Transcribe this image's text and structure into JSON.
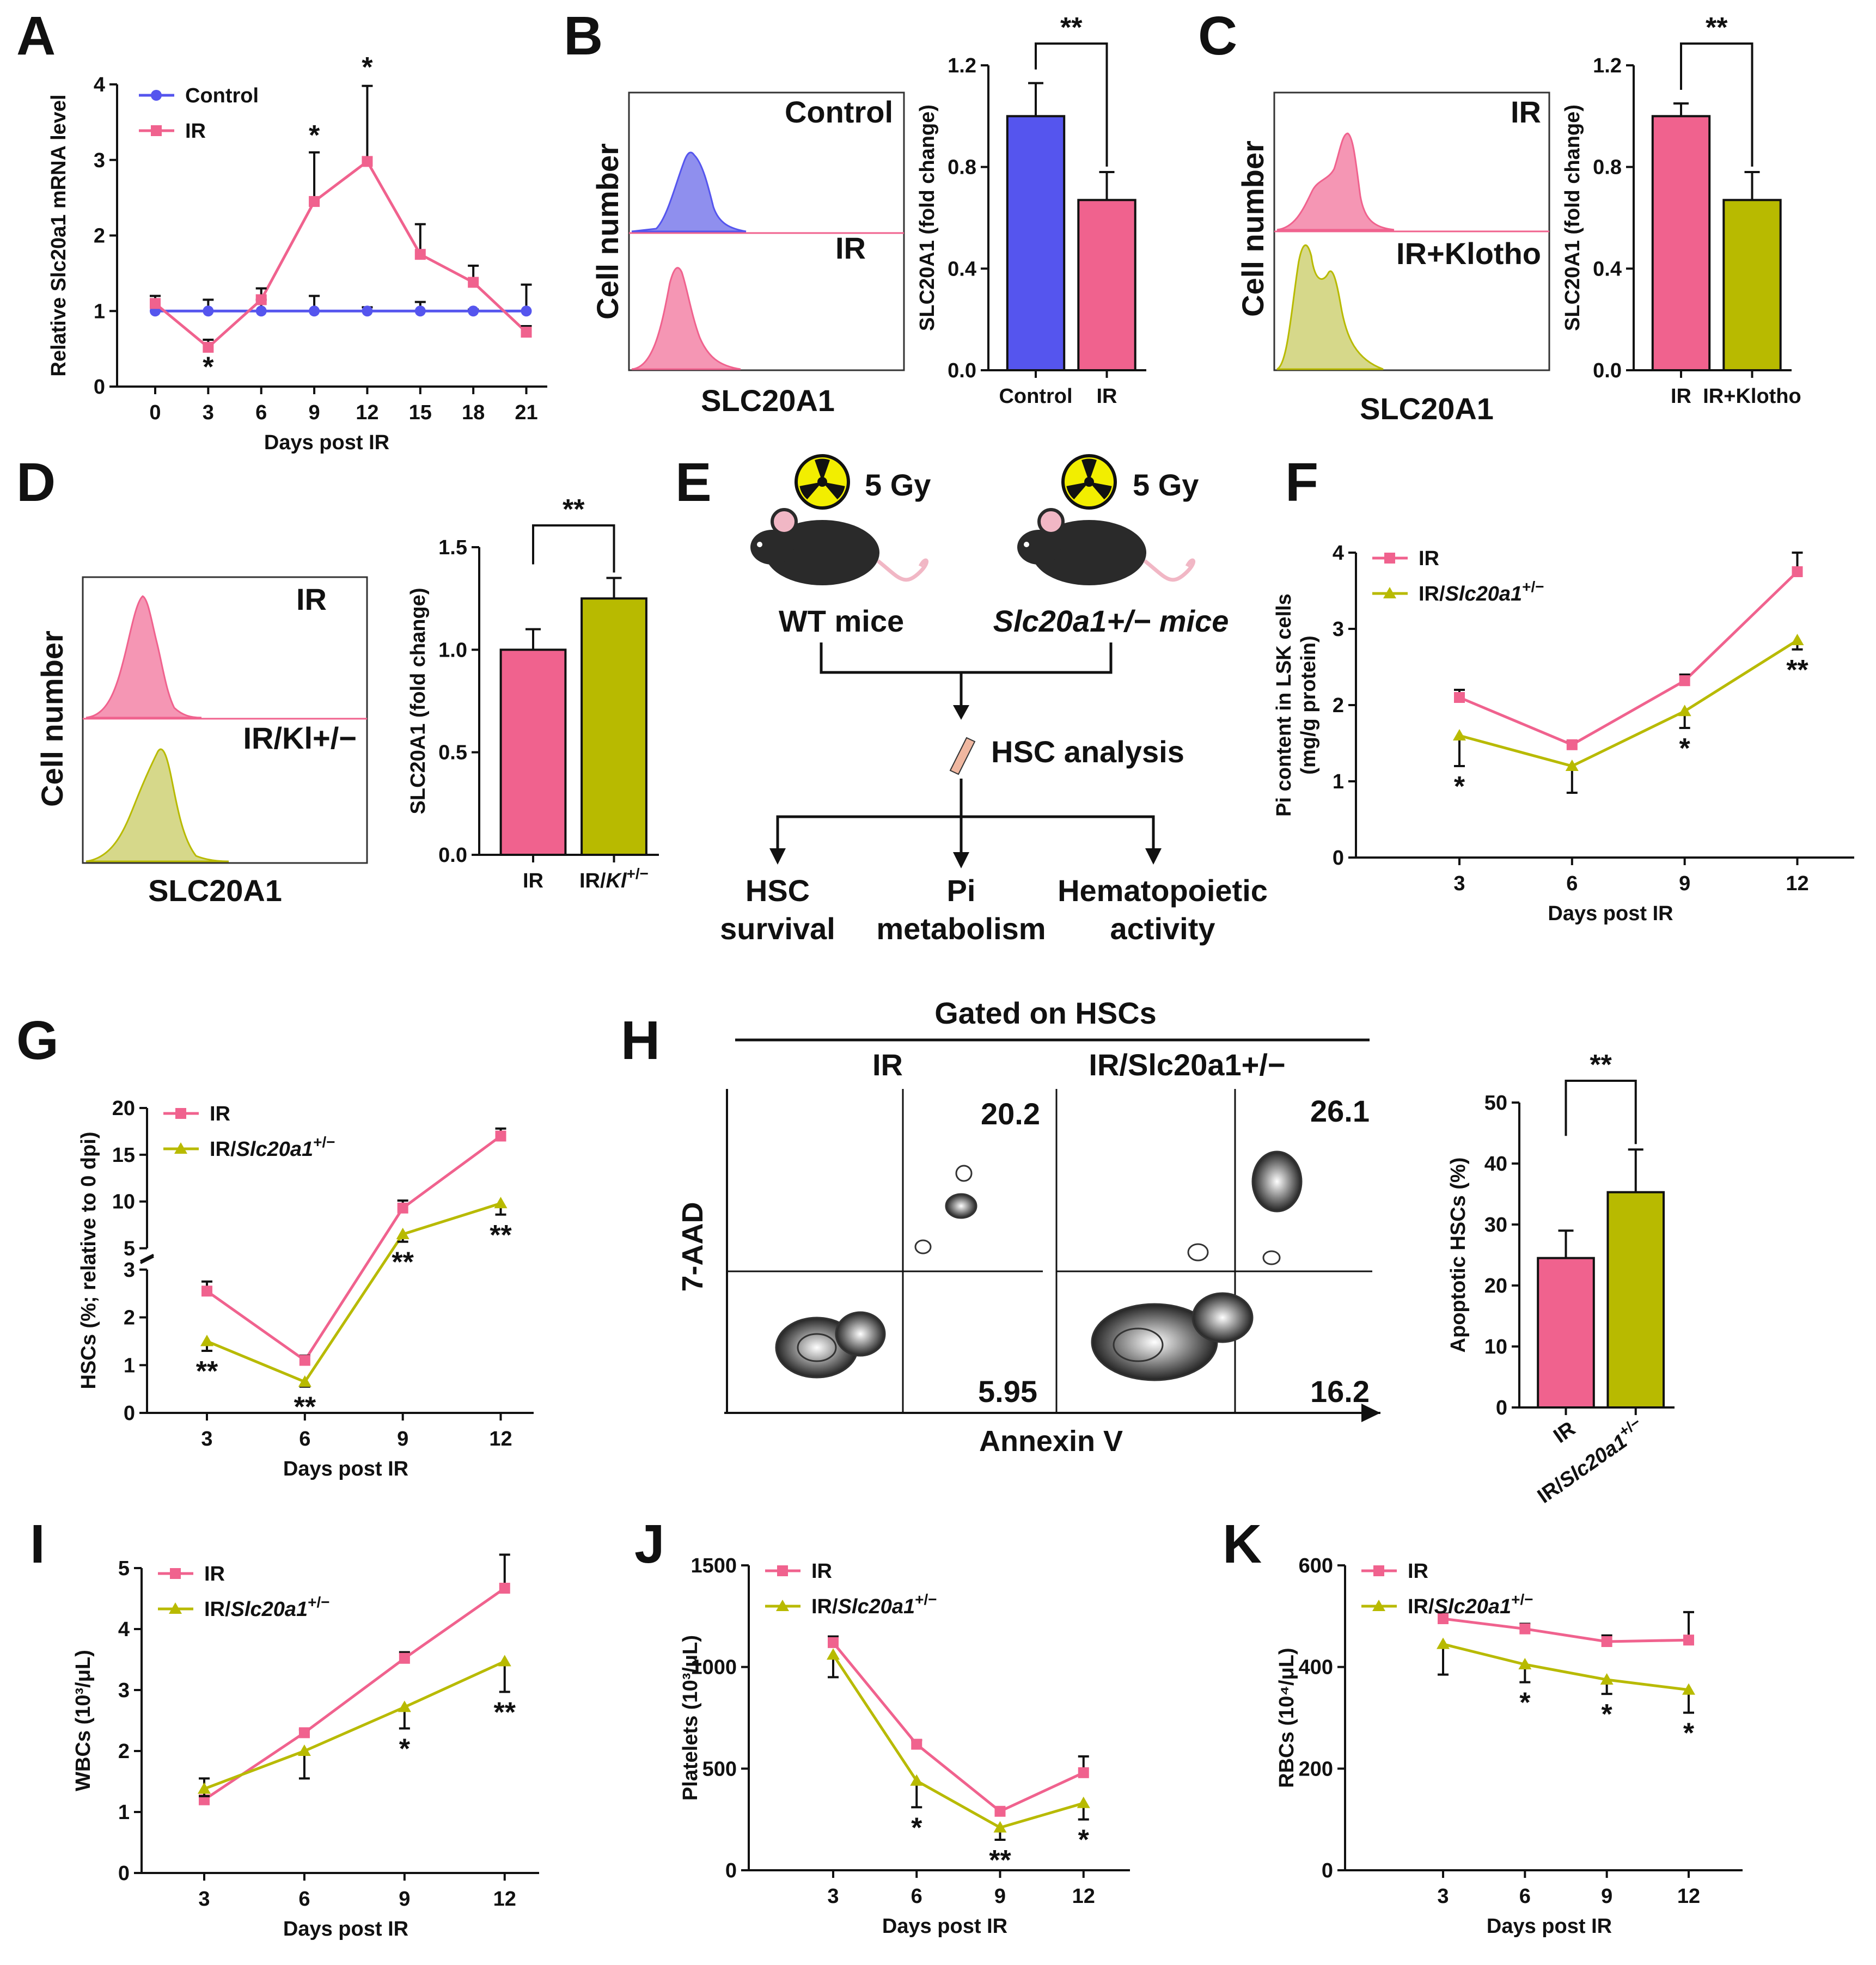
{
  "colors": {
    "control": "#5555ee",
    "ir": "#f0628e",
    "mut": "#b8ba00",
    "axis": "#111111"
  },
  "icons": {
    "radiation": "radiation-hazard-icon",
    "mouse": "mouse-icon",
    "bone": "bone-icon"
  },
  "chart_data": [
    {
      "panel": "A",
      "type": "line",
      "ylabel": "Relative Slc20a1 mRNA level",
      "xlabel": "Days post IR",
      "x": [
        0,
        3,
        6,
        9,
        12,
        15,
        18,
        21
      ],
      "ylim": [
        0,
        4
      ],
      "yticks": [
        0,
        1,
        2,
        3,
        4
      ],
      "series": [
        {
          "name": "Control",
          "color": "control",
          "marker": "circle",
          "values": [
            1,
            1,
            1,
            1,
            1,
            1,
            1,
            1
          ],
          "err": [
            0.1,
            0.15,
            0.15,
            0.2,
            0.05,
            0.12,
            0.02,
            0.35
          ]
        },
        {
          "name": "IR",
          "color": "ir",
          "marker": "square",
          "values": [
            1.1,
            0.52,
            1.15,
            2.45,
            2.98,
            1.75,
            1.38,
            0.72
          ],
          "err": [
            0.1,
            0.1,
            0.15,
            0.65,
            1.0,
            0.4,
            0.22,
            0.08
          ]
        }
      ],
      "annotations": [
        {
          "x": 3,
          "text": "*",
          "pos": "below",
          "y": 0.35
        },
        {
          "x": 9,
          "text": "*",
          "pos": "above",
          "y": 3.2
        },
        {
          "x": 12,
          "text": "*",
          "pos": "above",
          "y": 4.1
        }
      ]
    },
    {
      "panel": "B",
      "type": "bar",
      "ylabel": "SLC20A1 (fold change)",
      "categories": [
        "Control",
        "IR"
      ],
      "values": [
        1.0,
        0.67
      ],
      "err": [
        0.13,
        0.11
      ],
      "colors": [
        "control",
        "ir"
      ],
      "ylim": [
        0,
        1.2
      ],
      "yticks": [
        "0.0",
        "0.4",
        "0.8",
        "1.2"
      ],
      "tickvals": [
        0,
        0.4,
        0.8,
        1.2
      ],
      "significance": "**"
    },
    {
      "panel": "C",
      "type": "bar",
      "ylabel": "SLC20A1 (fold change)",
      "categories": [
        "IR",
        "IR+Klotho"
      ],
      "values": [
        1.0,
        0.67
      ],
      "err": [
        0.05,
        0.11
      ],
      "colors": [
        "ir",
        "mut"
      ],
      "ylim": [
        0,
        1.2
      ],
      "yticks": [
        "0.0",
        "0.4",
        "0.8",
        "1.2"
      ],
      "tickvals": [
        0,
        0.4,
        0.8,
        1.2
      ],
      "significance": "**"
    },
    {
      "panel": "D",
      "type": "bar",
      "ylabel": "SLC20A1 (fold change)",
      "categories": [
        "IR",
        "IR/Kl+/−"
      ],
      "values": [
        1.0,
        1.25
      ],
      "err": [
        0.1,
        0.1
      ],
      "colors": [
        "ir",
        "mut"
      ],
      "ylim": [
        0,
        1.5
      ],
      "yticks": [
        "0.0",
        "0.5",
        "1.0",
        "1.5"
      ],
      "tickvals": [
        0,
        0.5,
        1.0,
        1.5
      ],
      "significance": "**"
    },
    {
      "panel": "F",
      "type": "line",
      "ylabel": "Pi content in LSK cells (mg/g protein)",
      "xlabel": "Days post IR",
      "x": [
        3,
        6,
        9,
        12
      ],
      "ylim": [
        0,
        4
      ],
      "yticks": [
        0,
        1,
        2,
        3,
        4
      ],
      "series": [
        {
          "name": "IR",
          "color": "ir",
          "marker": "square",
          "values": [
            2.1,
            1.48,
            2.32,
            3.75
          ],
          "err": [
            0.1,
            0.05,
            0.08,
            0.25
          ]
        },
        {
          "name": "IR/Slc20a1+/−",
          "color": "mut",
          "marker": "triangle",
          "values": [
            1.6,
            1.2,
            1.92,
            2.85
          ],
          "err": [
            0.4,
            0.35,
            0.22,
            0.12
          ]
        }
      ],
      "annotations": [
        {
          "x": 3,
          "text": "*"
        },
        {
          "x": 9,
          "text": "*"
        },
        {
          "x": 12,
          "text": "**"
        }
      ]
    },
    {
      "panel": "G",
      "type": "line",
      "ylabel": "HSCs (%; relative to 0 dpi)",
      "xlabel": "Days post IR",
      "x": [
        3,
        6,
        9,
        12
      ],
      "ylim": [
        0,
        20
      ],
      "yticks": [
        0,
        1,
        2,
        3,
        5,
        10,
        15,
        20
      ],
      "axis_break": [
        3,
        5
      ],
      "series": [
        {
          "name": "IR",
          "color": "ir",
          "marker": "square",
          "values": [
            2.55,
            1.1,
            9.3,
            17.0
          ],
          "err": [
            0.2,
            0.1,
            0.8,
            0.8
          ]
        },
        {
          "name": "IR/Slc20a1+/−",
          "color": "mut",
          "marker": "triangle",
          "values": [
            1.5,
            0.65,
            6.5,
            9.8
          ],
          "err": [
            0.2,
            0.1,
            0.8,
            1.2
          ]
        }
      ],
      "annotations": [
        {
          "x": 3,
          "text": "**"
        },
        {
          "x": 6,
          "text": "**"
        },
        {
          "x": 9,
          "text": "**"
        },
        {
          "x": 12,
          "text": "**"
        }
      ]
    },
    {
      "panel": "H",
      "type": "bar",
      "ylabel": "Apoptotic HSCs (%)",
      "categories": [
        "IR",
        "IR/Slc20a1+/−"
      ],
      "values": [
        24.5,
        35.3
      ],
      "err": [
        4.5,
        7.0
      ],
      "colors": [
        "ir",
        "mut"
      ],
      "ylim": [
        0,
        50
      ],
      "yticks": [
        "0",
        "10",
        "20",
        "30",
        "40",
        "50"
      ],
      "tickvals": [
        0,
        10,
        20,
        30,
        40,
        50
      ],
      "significance": "**"
    },
    {
      "panel": "I",
      "type": "line",
      "ylabel": "WBCs (10³/μL)",
      "xlabel": "Days post IR",
      "x": [
        3,
        6,
        9,
        12
      ],
      "ylim": [
        0,
        5
      ],
      "yticks": [
        0,
        1,
        2,
        3,
        4,
        5
      ],
      "series": [
        {
          "name": "IR",
          "color": "ir",
          "marker": "square",
          "values": [
            1.2,
            2.3,
            3.52,
            4.67
          ],
          "err": [
            0.35,
            0.05,
            0.1,
            0.55
          ]
        },
        {
          "name": "IR/Slc20a1+/−",
          "color": "mut",
          "marker": "triangle",
          "values": [
            1.38,
            2.0,
            2.72,
            3.47
          ],
          "err": [
            0.12,
            0.45,
            0.35,
            0.5
          ]
        }
      ],
      "annotations": [
        {
          "x": 9,
          "text": "*"
        },
        {
          "x": 12,
          "text": "**"
        }
      ]
    },
    {
      "panel": "J",
      "type": "line",
      "ylabel": "Platelets (10³/μL)",
      "xlabel": "Days post IR",
      "x": [
        3,
        6,
        9,
        12
      ],
      "ylim": [
        0,
        1500
      ],
      "yticks": [
        0,
        500,
        1000,
        1500
      ],
      "series": [
        {
          "name": "IR",
          "color": "ir",
          "marker": "square",
          "values": [
            1120,
            620,
            290,
            480
          ],
          "err": [
            30,
            20,
            20,
            80
          ]
        },
        {
          "name": "IR/Slc20a1+/−",
          "color": "mut",
          "marker": "triangle",
          "values": [
            1060,
            440,
            210,
            330
          ],
          "err": [
            110,
            130,
            60,
            80
          ]
        }
      ],
      "annotations": [
        {
          "x": 6,
          "text": "*"
        },
        {
          "x": 9,
          "text": "**"
        },
        {
          "x": 12,
          "text": "*"
        }
      ]
    },
    {
      "panel": "K",
      "type": "line",
      "ylabel": "RBCs (10⁴/μL)",
      "xlabel": "Days post IR",
      "x": [
        3,
        6,
        9,
        12
      ],
      "ylim": [
        0,
        600
      ],
      "yticks": [
        0,
        200,
        400,
        600
      ],
      "series": [
        {
          "name": "IR",
          "color": "ir",
          "marker": "square",
          "values": [
            495,
            475,
            450,
            453
          ],
          "err": [
            10,
            10,
            12,
            55
          ]
        },
        {
          "name": "IR/Slc20a1+/−",
          "color": "mut",
          "marker": "triangle",
          "values": [
            445,
            405,
            375,
            355
          ],
          "err": [
            60,
            35,
            28,
            45
          ]
        }
      ],
      "annotations": [
        {
          "x": 6,
          "text": "*"
        },
        {
          "x": 9,
          "text": "*"
        },
        {
          "x": 12,
          "text": "*"
        }
      ]
    }
  ],
  "histograms": {
    "B": {
      "xlabel": "SLC20A1",
      "ylabel": "Cell number",
      "top": "Control",
      "bottom": "IR"
    },
    "C": {
      "xlabel": "SLC20A1",
      "ylabel": "Cell number",
      "top": "IR",
      "bottom": "IR+Klotho"
    },
    "D": {
      "xlabel": "SLC20A1",
      "ylabel": "Cell number",
      "top": "IR",
      "bottom": "IR/Kl+/−"
    }
  },
  "scheme": {
    "dose_left": "5 Gy",
    "dose_right": "5 Gy",
    "wt": "WT mice",
    "het": "Slc20a1+/− mice",
    "analysis": "HSC analysis",
    "out1_l1": "HSC",
    "out1_l2": "survival",
    "out2_l1": "Pi",
    "out2_l2": "metabolism",
    "out3_l1": "Hematopoietic",
    "out3_l2": "activity"
  },
  "facs": {
    "title": "Gated on HSCs",
    "left_title": "IR",
    "right_title": "IR/Slc20a1+/−",
    "left_ur": "20.2",
    "left_lr": "5.95",
    "right_ur": "26.1",
    "right_lr": "16.2",
    "xlabel": "Annexin V",
    "ylabel": "7-AAD"
  },
  "panel_labels": [
    "A",
    "B",
    "C",
    "D",
    "E",
    "F",
    "G",
    "H",
    "I",
    "J",
    "K"
  ]
}
